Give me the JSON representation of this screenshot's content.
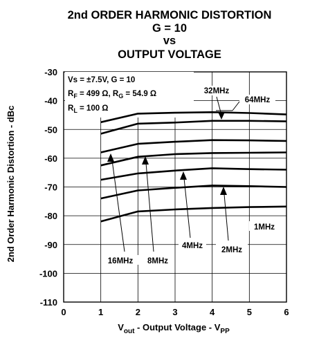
{
  "chart_data": {
    "type": "line",
    "title_lines": [
      "2nd ORDER HARMONIC DISTORTION",
      "G = 10",
      "vs",
      "OUTPUT VOLTAGE"
    ],
    "xlabel": {
      "main": "V",
      "sub1": "out",
      "mid": " - Output Voltage - V",
      "sub2": "PP"
    },
    "ylabel": "2nd Order Harmonic Distortion - dBc",
    "xlim": [
      0,
      6
    ],
    "ylim": [
      -110,
      -30
    ],
    "xticks": [
      0,
      1,
      2,
      3,
      4,
      5,
      6
    ],
    "yticks": [
      -30,
      -40,
      -50,
      -60,
      -70,
      -80,
      -90,
      -100,
      -110
    ],
    "grid": true,
    "conditions": {
      "line1": "Vs = ±7.5V, G = 10",
      "line2": {
        "a": "R",
        "a_sub": "F",
        "b": " = 499 Ω, R",
        "b_sub": "G",
        "c": " = 54.9 Ω"
      },
      "line3": {
        "a": "R",
        "a_sub": "L",
        "b": " = 100 Ω"
      }
    },
    "series": [
      {
        "name": "64MHz",
        "x": [
          1,
          2,
          3,
          4,
          5,
          6
        ],
        "y": [
          -47.5,
          -44.5,
          -44.2,
          -44.0,
          -44.3,
          -44.8
        ]
      },
      {
        "name": "32MHz",
        "x": [
          1,
          2,
          3,
          4,
          5,
          6
        ],
        "y": [
          -51.5,
          -48.0,
          -47.6,
          -47.0,
          -47.0,
          -47.2
        ]
      },
      {
        "name": "16MHz",
        "x": [
          1,
          2,
          3,
          4,
          5,
          6
        ],
        "y": [
          -58.0,
          -55.0,
          -54.3,
          -53.7,
          -53.8,
          -54.0
        ]
      },
      {
        "name": "8MHz",
        "x": [
          1,
          2,
          3,
          4,
          5,
          6
        ],
        "y": [
          -62.5,
          -59.5,
          -58.6,
          -58.2,
          -58.1,
          -58.0
        ]
      },
      {
        "name": "4MHz",
        "x": [
          1,
          2,
          3,
          4,
          5,
          6
        ],
        "y": [
          -67.5,
          -65.3,
          -64.3,
          -63.5,
          -63.8,
          -64.0
        ]
      },
      {
        "name": "2MHz",
        "x": [
          1,
          2,
          3,
          4,
          5,
          6
        ],
        "y": [
          -74.0,
          -71.2,
          -70.3,
          -69.5,
          -69.7,
          -70.0
        ]
      },
      {
        "name": "1MHz",
        "x": [
          1,
          2,
          3,
          4,
          5,
          6
        ],
        "y": [
          -82.0,
          -78.5,
          -77.8,
          -77.3,
          -77.0,
          -76.8
        ]
      }
    ]
  }
}
